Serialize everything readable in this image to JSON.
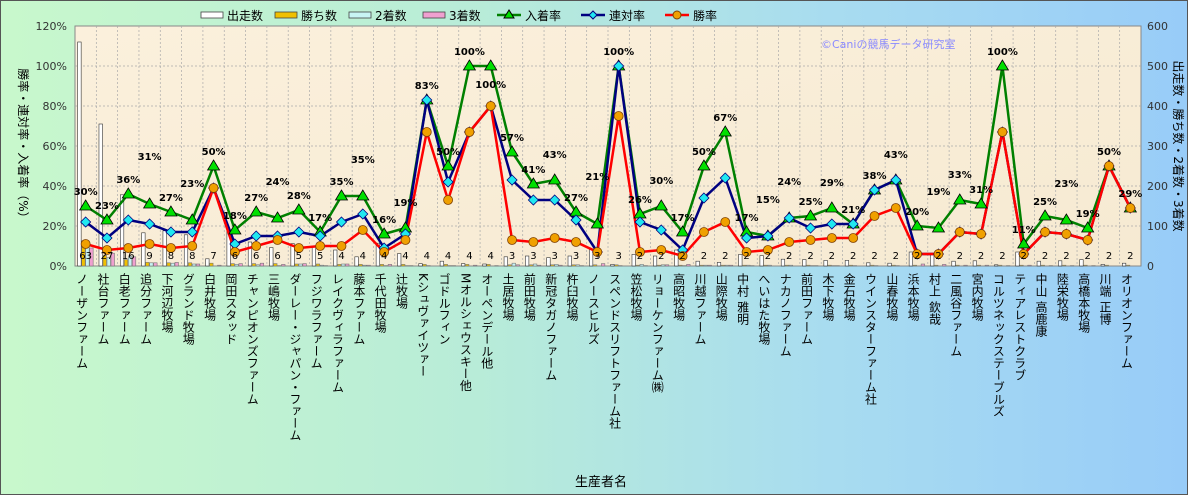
{
  "chart_data": {
    "type": "bar+line",
    "watermark": "©Caniの競馬データ研究室",
    "xlabel": "生産者名",
    "ylabel_left": "勝率・連対率・入着率（%）",
    "ylabel_right": "出走数・勝ち数・2着数・3着数",
    "ylim_left": [
      0,
      120
    ],
    "ylim_right": [
      0,
      600
    ],
    "yticks_left": [
      "0%",
      "20%",
      "40%",
      "60%",
      "80%",
      "100%",
      "120%"
    ],
    "yticks_right": [
      "0",
      "100",
      "200",
      "300",
      "400",
      "500",
      "600"
    ],
    "grid": true,
    "legend_position": "top",
    "legend": [
      "出走数",
      "勝ち数",
      "2着数",
      "3着数",
      "入着率",
      "連対率",
      "勝率"
    ],
    "colors": {
      "runs": "#ffffff",
      "wins": "#f0c000",
      "second": "#c8f4f4",
      "third": "#f0a0d0",
      "place_rate": "#008000",
      "rentai_rate": "#000080",
      "win_rate": "#ff0000"
    },
    "categories": [
      "ノーザンファーム",
      "社台ファーム",
      "白老ファーム",
      "追分ファーム",
      "下河辺牧場",
      "グランド牧場",
      "白井牧場",
      "岡田スタッド",
      "チャンピオンズファーム",
      "三嶋牧場",
      "ダーレー・ジャパン・ファーム",
      "フジワラファーム",
      "レイクヴィラファーム",
      "藤本ファーム",
      "千代田牧場",
      "辻牧場",
      "Kシュヴァイツァー",
      "ゴドルフィン",
      "Mオルシェウスキー他",
      "オーペンデール他",
      "土居牧場",
      "前田牧場",
      "新冠タガノファーム",
      "杵臼牧場",
      "ノースヒルズ",
      "スペンドスリフトファーム社",
      "笠松牧場",
      "リョーケンファーム㈱",
      "高昭牧場",
      "川越ファーム",
      "山際牧場",
      "中村 雅明",
      "へいはた牧場",
      "ナカノファーム",
      "前田ファーム",
      "木下牧場",
      "金石牧場",
      "ウインスターファーム社",
      "山春牧場",
      "浜本牧場",
      "村上 欽哉",
      "二風谷ファーム",
      "宮内牧場",
      "コルツネックステーブルズ",
      "ティアレストクラブ",
      "中山 高鹿康",
      "陸栄牧場",
      "高橋本牧場",
      "川端 正博",
      "オリオンファーム"
    ],
    "series": [
      {
        "name": "出走数",
        "axis": "right",
        "kind": "bar",
        "values": [
          560,
          355,
          178,
          83,
          88,
          78,
          18,
          88,
          60,
          46,
          56,
          50,
          40,
          23,
          57,
          31,
          6,
          12,
          6,
          5,
          23,
          25,
          21,
          25,
          42,
          4,
          29,
          25,
          40,
          12,
          9,
          29,
          26,
          17,
          16,
          14,
          14,
          8,
          7,
          35,
          32,
          12,
          13,
          3,
          35,
          12,
          13,
          16,
          4,
          7
        ]
      },
      {
        "name": "勝ち数",
        "axis": "right",
        "kind": "bar",
        "values": [
          63,
          27,
          16,
          9,
          8,
          8,
          7,
          6,
          6,
          6,
          5,
          5,
          4,
          4,
          4,
          4,
          4,
          4,
          4,
          4,
          3,
          3,
          3,
          3,
          3,
          3,
          2,
          2,
          2,
          2,
          2,
          2,
          2,
          2,
          2,
          2,
          2,
          2,
          2,
          2,
          2,
          2,
          2,
          2,
          2,
          2,
          2,
          2,
          2,
          2
        ]
      },
      {
        "name": "2着数",
        "axis": "right",
        "kind": "bar",
        "values": [
          62,
          21,
          25,
          8,
          7,
          5,
          0,
          4,
          3,
          1,
          5,
          2,
          5,
          2,
          1,
          1,
          1,
          1,
          0,
          0,
          7,
          5,
          4,
          3,
          0,
          1,
          4,
          3,
          1,
          2,
          2,
          2,
          2,
          2,
          1,
          1,
          1,
          1,
          1,
          0,
          0,
          0,
          0,
          0,
          0,
          0,
          0,
          0,
          0,
          0
        ]
      },
      {
        "name": "3着数",
        "axis": "right",
        "kind": "bar",
        "values": [
          45,
          32,
          23,
          8,
          9,
          5,
          2,
          6,
          7,
          4,
          6,
          1,
          5,
          2,
          4,
          1,
          0,
          1,
          2,
          1,
          3,
          2,
          2,
          1,
          6,
          0,
          1,
          3,
          4,
          2,
          2,
          1,
          0,
          0,
          1,
          1,
          0,
          0,
          0,
          5,
          4,
          2,
          2,
          1,
          2,
          1,
          1,
          1,
          0,
          0
        ]
      },
      {
        "name": "入着率",
        "axis": "left",
        "kind": "line",
        "values": [
          30,
          23,
          36,
          31,
          27,
          23,
          50,
          18,
          27,
          24,
          28,
          17,
          35,
          35,
          16,
          19,
          83,
          50,
          100,
          100,
          57,
          41,
          43,
          27,
          21,
          100,
          26,
          30,
          17,
          50,
          67,
          17,
          15,
          24,
          25,
          29,
          21,
          38,
          43,
          20,
          19,
          33,
          31,
          100,
          11,
          25,
          23,
          19,
          50,
          29
        ]
      },
      {
        "name": "連対率",
        "axis": "left",
        "kind": "line",
        "values": [
          22,
          14,
          23,
          21,
          17,
          17,
          39,
          11,
          15,
          15,
          17,
          15,
          22,
          26,
          9,
          16,
          83,
          42,
          67,
          80,
          43,
          33,
          33,
          23,
          7,
          100,
          22,
          18,
          8,
          34,
          44,
          14,
          15,
          24,
          19,
          21,
          21,
          38,
          43,
          6,
          6,
          17,
          16,
          67,
          6,
          17,
          16,
          13,
          50,
          29
        ]
      },
      {
        "name": "勝率",
        "axis": "left",
        "kind": "line",
        "values": [
          11,
          8,
          9,
          11,
          9,
          10,
          39,
          7,
          10,
          13,
          9,
          10,
          10,
          18,
          7,
          13,
          67,
          33,
          67,
          80,
          13,
          12,
          14,
          12,
          7,
          75,
          7,
          8,
          5,
          17,
          22,
          7,
          8,
          12,
          13,
          14,
          14,
          25,
          29,
          6,
          6,
          17,
          16,
          67,
          6,
          17,
          16,
          13,
          50,
          29
        ]
      }
    ]
  }
}
